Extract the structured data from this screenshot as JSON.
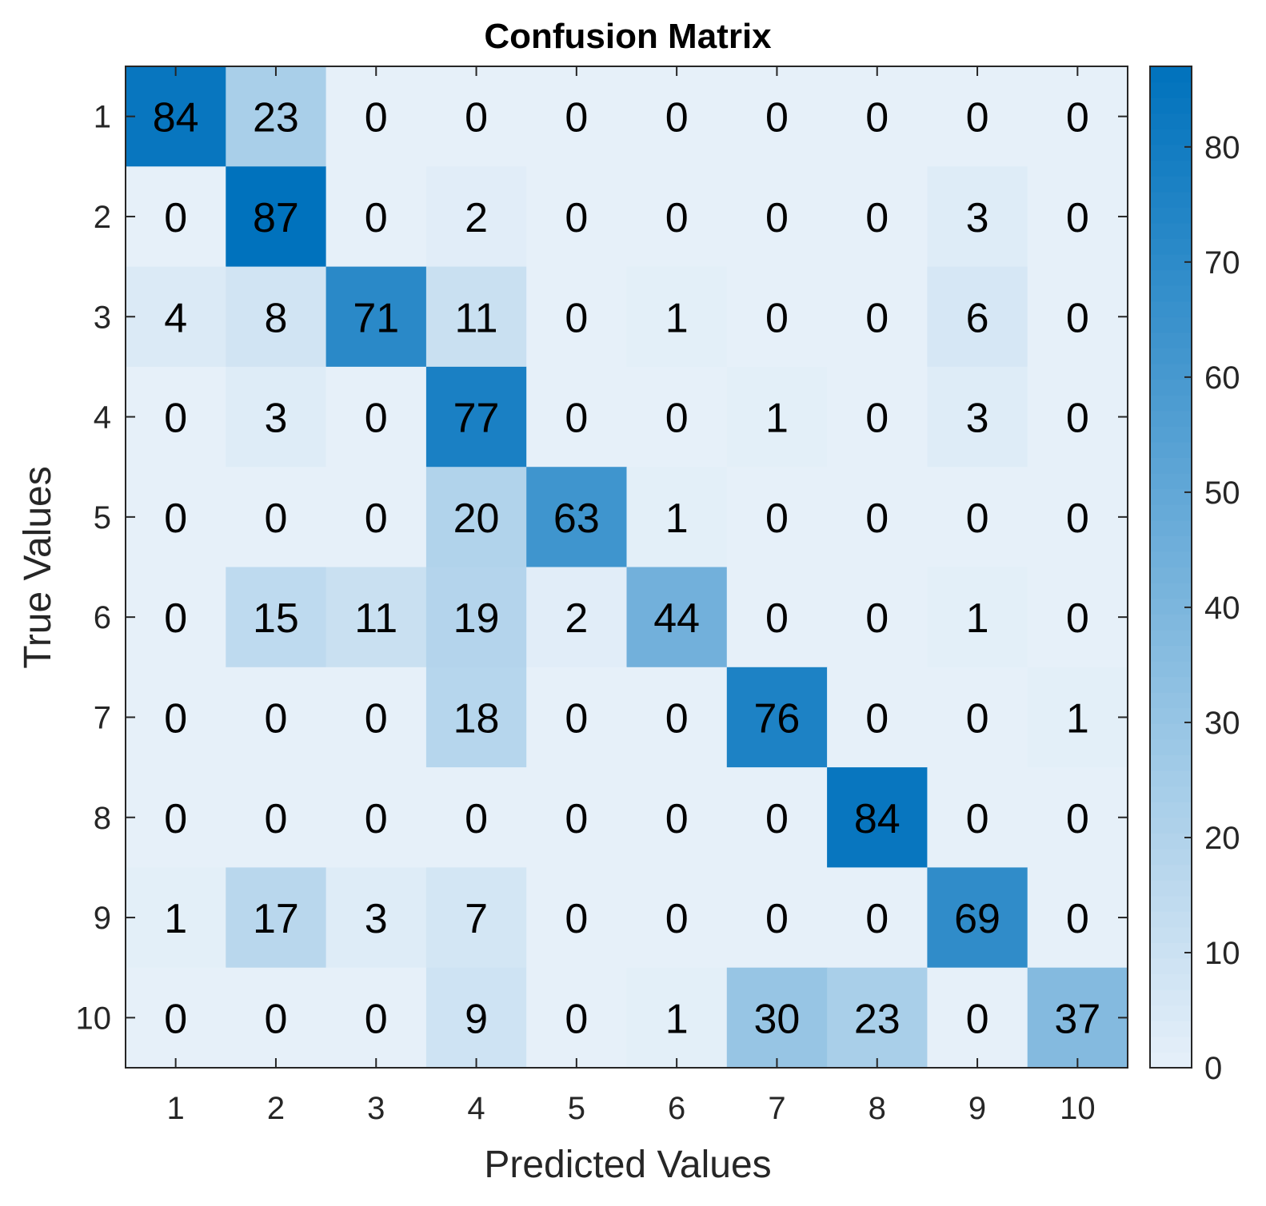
{
  "chart_data": {
    "type": "heatmap",
    "title": "Confusion Matrix",
    "xlabel": "Predicted Values",
    "ylabel": "True Values",
    "x_categories": [
      "1",
      "2",
      "3",
      "4",
      "5",
      "6",
      "7",
      "8",
      "9",
      "10"
    ],
    "y_categories": [
      "1",
      "2",
      "3",
      "4",
      "5",
      "6",
      "7",
      "8",
      "9",
      "10"
    ],
    "matrix": [
      [
        84,
        23,
        0,
        0,
        0,
        0,
        0,
        0,
        0,
        0
      ],
      [
        0,
        87,
        0,
        2,
        0,
        0,
        0,
        0,
        3,
        0
      ],
      [
        4,
        8,
        71,
        11,
        0,
        1,
        0,
        0,
        6,
        0
      ],
      [
        0,
        3,
        0,
        77,
        0,
        0,
        1,
        0,
        3,
        0
      ],
      [
        0,
        0,
        0,
        20,
        63,
        1,
        0,
        0,
        0,
        0
      ],
      [
        0,
        15,
        11,
        19,
        2,
        44,
        0,
        0,
        1,
        0
      ],
      [
        0,
        0,
        0,
        18,
        0,
        0,
        76,
        0,
        0,
        1
      ],
      [
        0,
        0,
        0,
        0,
        0,
        0,
        0,
        84,
        0,
        0
      ],
      [
        1,
        17,
        3,
        7,
        0,
        0,
        0,
        0,
        69,
        0
      ],
      [
        0,
        0,
        0,
        9,
        0,
        1,
        30,
        23,
        0,
        37
      ]
    ],
    "colorbar": {
      "range": [
        0,
        87
      ],
      "ticks": [
        0,
        10,
        20,
        30,
        40,
        50,
        60,
        70,
        80
      ],
      "color_low": "#e6f0f9",
      "color_high": "#0072bd"
    },
    "grid": false,
    "legend": "none"
  }
}
